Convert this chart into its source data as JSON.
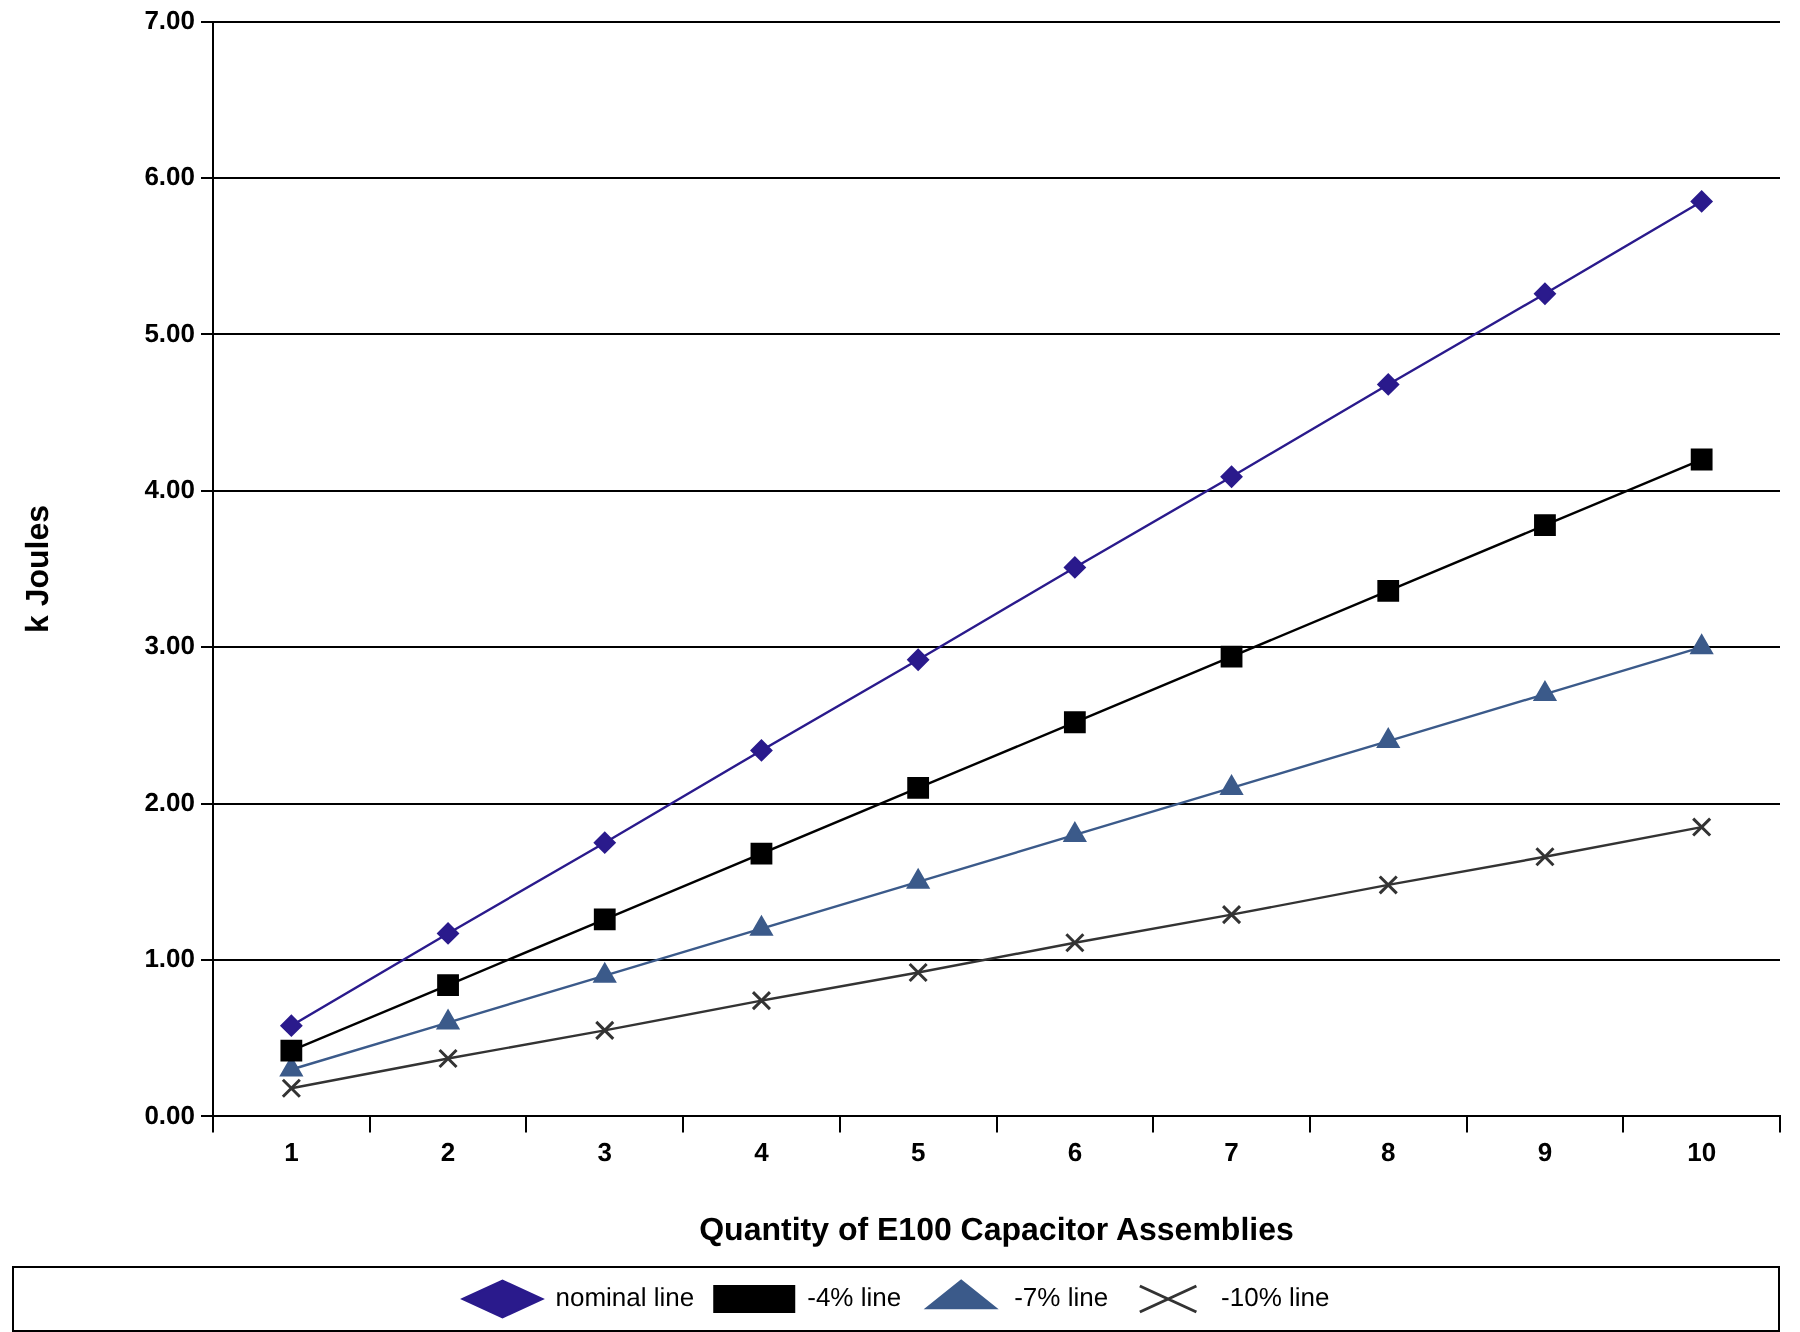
{
  "chart_data": {
    "type": "line",
    "xlabel": "Quantity of E100 Capacitor Assemblies",
    "ylabel": "k Joules",
    "categories": [
      "1",
      "2",
      "3",
      "4",
      "5",
      "6",
      "7",
      "8",
      "9",
      "10"
    ],
    "ylim": [
      0,
      7
    ],
    "yticks": [
      {
        "value": 0,
        "label": "0.00"
      },
      {
        "value": 1,
        "label": "1.00"
      },
      {
        "value": 2,
        "label": "2.00"
      },
      {
        "value": 3,
        "label": "3.00"
      },
      {
        "value": 4,
        "label": "4.00"
      },
      {
        "value": 5,
        "label": "5.00"
      },
      {
        "value": 6,
        "label": "6.00"
      },
      {
        "value": 7,
        "label": "7.00"
      }
    ],
    "grid": "y",
    "legend": "bottom",
    "series": [
      {
        "name": "nominal line",
        "color": "#2a1a8c",
        "marker": "diamond",
        "values": [
          0.58,
          1.17,
          1.75,
          2.34,
          2.92,
          3.51,
          4.09,
          4.68,
          5.26,
          5.85
        ]
      },
      {
        "name": "-4% line",
        "color": "#000000",
        "marker": "square",
        "values": [
          0.42,
          0.84,
          1.26,
          1.68,
          2.1,
          2.52,
          2.94,
          3.36,
          3.78,
          4.2
        ]
      },
      {
        "name": "-7% line",
        "color": "#3b5a8a",
        "marker": "triangle",
        "values": [
          0.3,
          0.6,
          0.9,
          1.2,
          1.5,
          1.8,
          2.1,
          2.4,
          2.7,
          3.0
        ]
      },
      {
        "name": "-10% line",
        "color": "#333333",
        "marker": "cross",
        "values": [
          0.18,
          0.37,
          0.55,
          0.74,
          0.92,
          1.11,
          1.29,
          1.48,
          1.66,
          1.85
        ]
      }
    ]
  }
}
